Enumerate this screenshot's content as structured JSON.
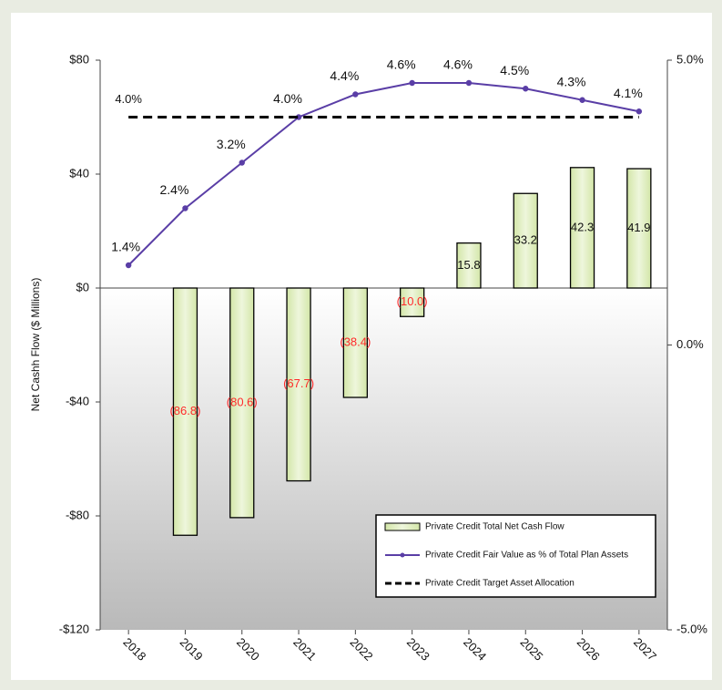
{
  "chart_data": {
    "type": "combo",
    "y_label": "Net Cashh Flow ($ Millions)",
    "categories": [
      "2018",
      "2019",
      "2020",
      "2021",
      "2022",
      "2023",
      "2024",
      "2025",
      "2026",
      "2027"
    ],
    "series": [
      {
        "name": "Private Credit Total Net Cash Flow",
        "type": "bar",
        "axis": "y",
        "color": "#e3efc6",
        "values": [
          null,
          -86.8,
          -80.6,
          -67.7,
          -38.4,
          -10.0,
          15.8,
          33.2,
          42.3,
          41.9
        ],
        "value_labels": [
          null,
          "(86.8)",
          "(80.6)",
          "(67.7)",
          "(38.4)",
          "(10.0)",
          "15.8",
          "33.2",
          "42.3",
          "41.9"
        ]
      },
      {
        "name": "Private Credit Fair Value as % of Total Plan Assets",
        "type": "line",
        "axis": "y2",
        "color": "#5a3ea6",
        "values": [
          1.4,
          2.4,
          3.2,
          4.0,
          4.4,
          4.6,
          4.6,
          4.5,
          4.3,
          4.1
        ],
        "value_labels": [
          "1.4%",
          "2.4%",
          "3.2%",
          "4.0%",
          "4.4%",
          "4.6%",
          "4.6%",
          "4.5%",
          "4.3%",
          "4.1%"
        ]
      },
      {
        "name": "Private Credit Target Asset Allocation",
        "type": "dashed",
        "axis": "y2",
        "color": "#000000",
        "values": [
          4.0,
          4.0,
          4.0,
          4.0,
          4.0,
          4.0,
          4.0,
          4.0,
          4.0,
          4.0
        ],
        "value_labels": [
          "4.0%",
          null,
          null,
          null,
          null,
          null,
          null,
          null,
          null,
          null
        ]
      }
    ],
    "ylim": [
      -120,
      80
    ],
    "yticks": [
      {
        "value": 80,
        "label": "$80"
      },
      {
        "value": 40,
        "label": "$40"
      },
      {
        "value": 0,
        "label": "$0"
      },
      {
        "value": -40,
        "label": "-$40"
      },
      {
        "value": -80,
        "label": "-$80"
      },
      {
        "value": -120,
        "label": "-$120"
      }
    ],
    "y2lim": [
      -5,
      5
    ],
    "y2ticks": [
      {
        "value": 5,
        "label": "5.0%"
      },
      {
        "value": 0,
        "label": "0.0%"
      },
      {
        "value": -5,
        "label": "-5.0%"
      }
    ],
    "negative_label_color": "#ff2a2a",
    "grid": false,
    "legend": "bottom-right"
  }
}
